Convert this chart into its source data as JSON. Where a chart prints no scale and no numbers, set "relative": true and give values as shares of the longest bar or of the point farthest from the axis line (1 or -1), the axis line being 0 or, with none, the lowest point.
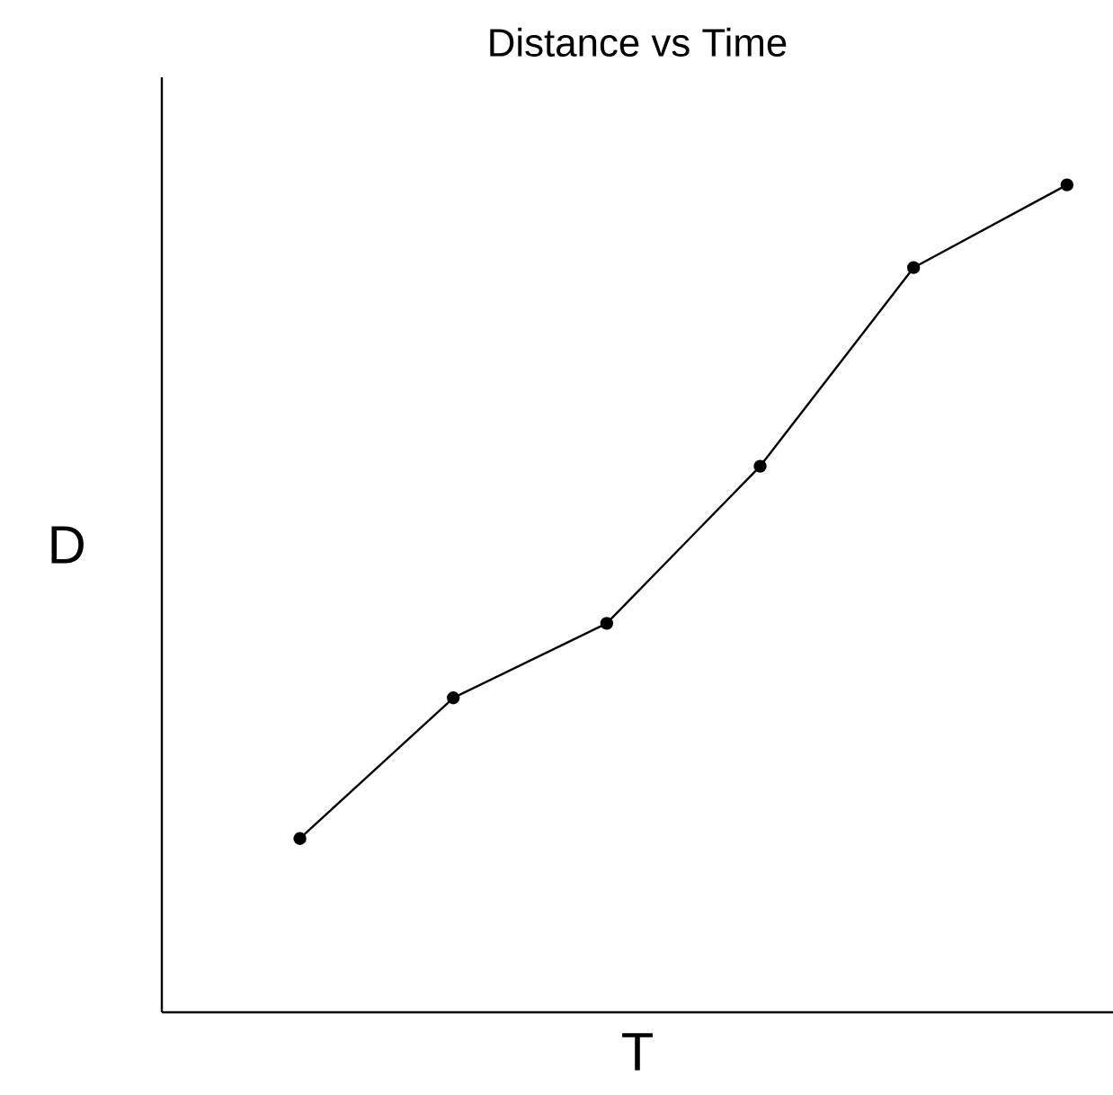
{
  "chart_data": {
    "type": "line",
    "title": "Distance vs Time",
    "xlabel": "T",
    "ylabel": "D",
    "relative": true,
    "categories": [
      null,
      null,
      null,
      null,
      null,
      null
    ],
    "series": [
      {
        "color": "#000000",
        "values": [
          0.21,
          0.38,
          0.47,
          0.66,
          0.9,
          1.0
        ]
      }
    ],
    "marker": "circle",
    "line_style": "solid"
  }
}
